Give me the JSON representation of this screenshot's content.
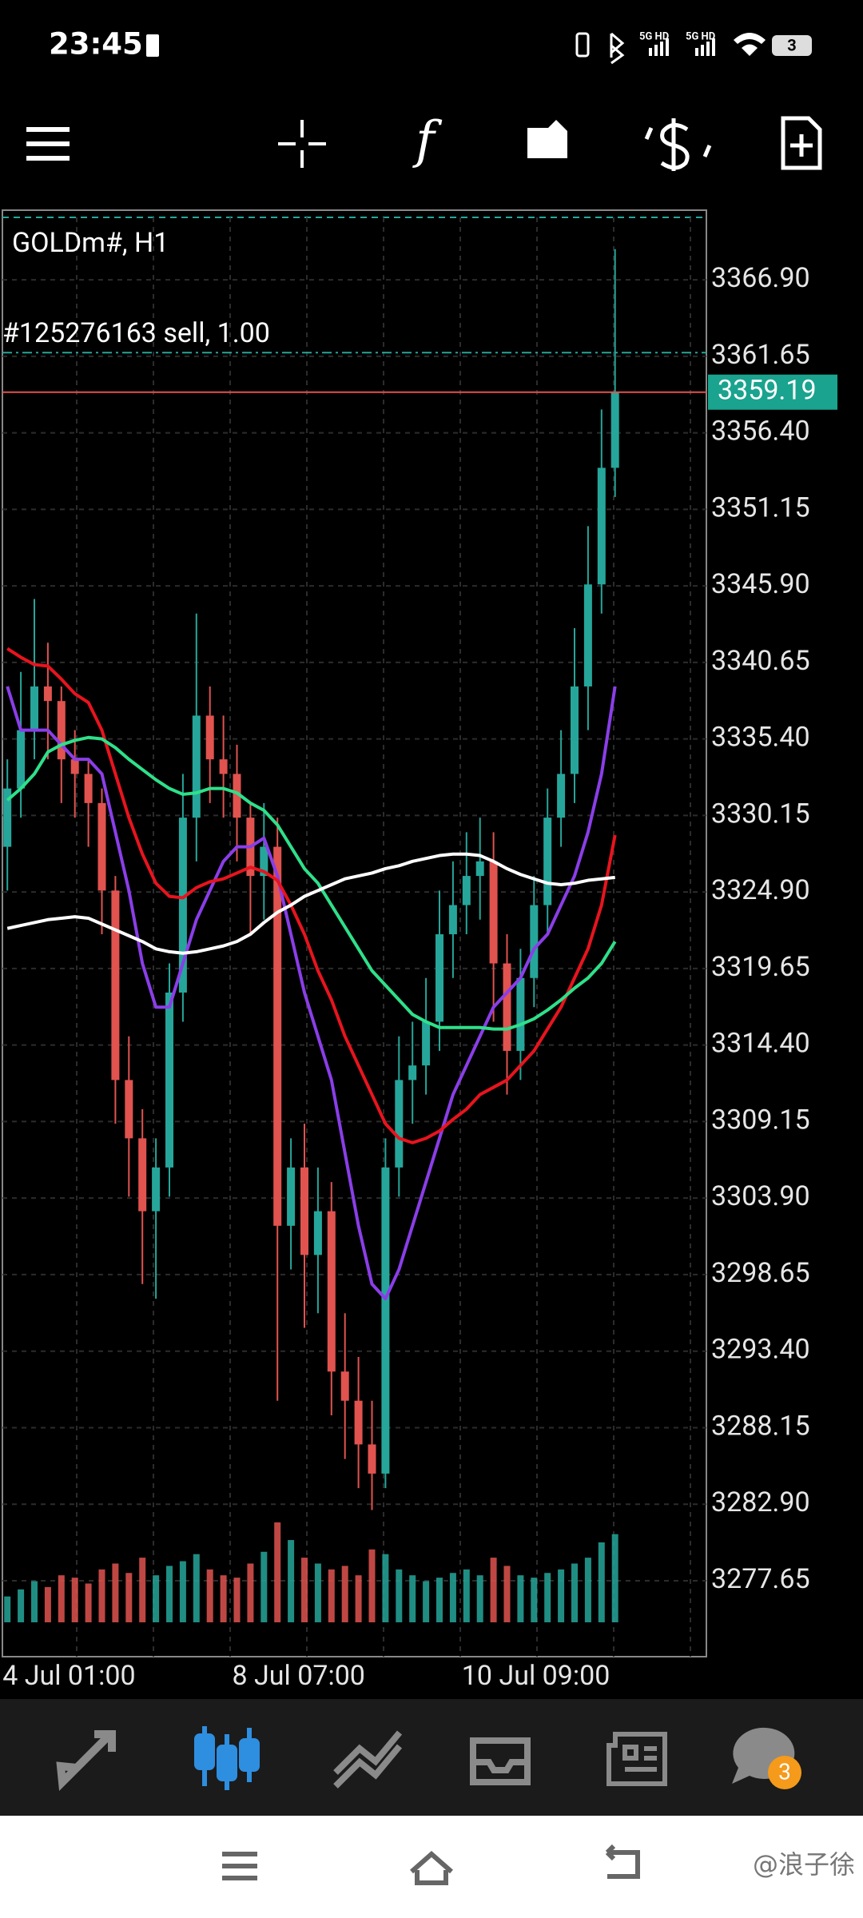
{
  "status_bar": {
    "time": "23:45",
    "network_labels": [
      "5G HD",
      "5G HD"
    ],
    "battery": "3"
  },
  "toolbar": {
    "function_icon": "f"
  },
  "chart_data": {
    "type": "candlestick",
    "title": "GOLDm#, H1",
    "categories": [
      "4 Jul 01:00",
      null,
      null,
      null,
      null,
      null,
      null,
      null,
      null,
      null,
      null,
      null,
      null,
      null,
      null,
      null,
      null,
      "8 Jul 07:00",
      null,
      null,
      null,
      null,
      null,
      null,
      null,
      null,
      null,
      null,
      null,
      null,
      null,
      null,
      null,
      null,
      "10 Jul 09:00",
      null,
      null,
      null,
      null,
      null,
      null,
      null,
      null,
      null,
      null,
      null
    ],
    "open": [
      3328,
      3332,
      3336,
      3339,
      3338,
      3334,
      3333,
      3331,
      3325,
      3312,
      3308,
      3303,
      3306,
      3318,
      3330,
      3337,
      3334,
      3333,
      3330,
      3326,
      3328,
      3302,
      3306,
      3300,
      3303,
      3292,
      3290,
      3287,
      3285,
      3306,
      3312,
      3313,
      3316,
      3322,
      3324,
      3326,
      3327,
      3320,
      3314,
      3319,
      3324,
      3330,
      3333,
      3339,
      3346,
      3354
    ],
    "high": [
      3334,
      3340,
      3345,
      3342,
      3339,
      3336,
      3334,
      3332,
      3326,
      3315,
      3310,
      3308,
      3320,
      3333,
      3344,
      3339,
      3337,
      3335,
      3331,
      3331,
      3330,
      3308,
      3309,
      3306,
      3305,
      3296,
      3293,
      3290,
      3308,
      3315,
      3316,
      3319,
      3325,
      3327,
      3329,
      3330,
      3329,
      3322,
      3321,
      3326,
      3332,
      3336,
      3343,
      3350,
      3358,
      3369
    ],
    "low": [
      3325,
      3330,
      3334,
      3334,
      3331,
      3330,
      3328,
      3322,
      3309,
      3304,
      3298,
      3297,
      3304,
      3316,
      3327,
      3331,
      3330,
      3327,
      3322,
      3323,
      3290,
      3299,
      3295,
      3296,
      3289,
      3286,
      3284,
      3282.5,
      3284,
      3304,
      3309,
      3311,
      3314,
      3319,
      3322,
      3323,
      3316,
      3311,
      3312,
      3317,
      3322,
      3328,
      3331,
      3336,
      3344,
      3352
    ],
    "close": [
      3332,
      3336,
      3339,
      3338,
      3334,
      3333,
      3331,
      3325,
      3312,
      3308,
      3303,
      3306,
      3318,
      3330,
      3337,
      3334,
      3333,
      3330,
      3326,
      3328,
      3302,
      3306,
      3300,
      3303,
      3292,
      3290,
      3287,
      3285,
      3306,
      3312,
      3313,
      3316,
      3322,
      3324,
      3326,
      3327,
      3320,
      3314,
      3319,
      3324,
      3330,
      3333,
      3339,
      3346,
      3354,
      3359.19
    ],
    "volume": [
      22,
      28,
      35,
      30,
      40,
      38,
      33,
      45,
      50,
      42,
      55,
      40,
      48,
      52,
      58,
      45,
      40,
      38,
      50,
      60,
      85,
      70,
      55,
      50,
      45,
      48,
      40,
      62,
      58,
      45,
      40,
      35,
      38,
      42,
      45,
      40,
      55,
      48,
      40,
      38,
      42,
      45,
      50,
      55,
      68,
      75
    ],
    "bull_color": "#26a69a",
    "bear_color": "#e0534f",
    "series": [
      {
        "color": "#8a3ee8",
        "values": [
          3339,
          3336,
          3336,
          3336,
          3335,
          3334,
          3334,
          3333,
          3329,
          3325,
          3320,
          3317,
          3317,
          3320,
          3323,
          3325,
          3327,
          3328,
          3328,
          3328.6,
          3326,
          3322,
          3318,
          3315,
          3312,
          3307,
          3302,
          3298,
          3297,
          3299,
          3302,
          3305,
          3308,
          3311,
          3313,
          3315,
          3317,
          3318,
          3319,
          3321,
          3322,
          3324,
          3326,
          3329,
          3333,
          3339
        ]
      },
      {
        "color": "#e8141e",
        "values": [
          3341.6,
          3341,
          3340.5,
          3340.4,
          3339.5,
          3338.5,
          3337.9,
          3336,
          3333,
          3330,
          3327.5,
          3325.5,
          3324.6,
          3324.5,
          3325.2,
          3325.6,
          3325.8,
          3326.2,
          3326.6,
          3326.3,
          3325.7,
          3324,
          3322,
          3319.5,
          3317.5,
          3315,
          3313,
          3311,
          3309,
          3308,
          3307.7,
          3308,
          3308.5,
          3309.3,
          3310,
          3311,
          3311.5,
          3312,
          3313,
          3314,
          3315.5,
          3317,
          3319,
          3321,
          3324,
          3328.8
        ]
      },
      {
        "color": "#2ee08a",
        "values": [
          3331.2,
          3332,
          3333,
          3334.5,
          3335,
          3335.3,
          3335.5,
          3335.4,
          3334.8,
          3334,
          3333.3,
          3332.6,
          3332,
          3331.6,
          3331.7,
          3332,
          3332,
          3331.7,
          3331,
          3330.5,
          3329.5,
          3328,
          3326.5,
          3325.5,
          3324,
          3322.5,
          3321,
          3319.5,
          3318.5,
          3317.5,
          3316.5,
          3316,
          3315.6,
          3315.6,
          3315.6,
          3315.6,
          3315.5,
          3315.5,
          3315.8,
          3316.2,
          3316.8,
          3317.5,
          3318.3,
          3319,
          3320,
          3321.5
        ]
      },
      {
        "color": "#ffffff",
        "values": [
          3322.4,
          3322.6,
          3322.8,
          3323,
          3323.1,
          3323.2,
          3323.1,
          3322.7,
          3322.3,
          3321.9,
          3321.5,
          3321,
          3320.8,
          3320.7,
          3320.8,
          3321,
          3321.2,
          3321.5,
          3322,
          3322.8,
          3323.5,
          3324,
          3324.6,
          3325,
          3325.4,
          3325.8,
          3326,
          3326.2,
          3326.5,
          3326.7,
          3327,
          3327.2,
          3327.4,
          3327.5,
          3327.5,
          3327.4,
          3327,
          3326.5,
          3326.1,
          3325.8,
          3325.5,
          3325.4,
          3325.5,
          3325.7,
          3325.8,
          3325.9
        ]
      }
    ],
    "ylim": [
      3272.44,
      3371.18
    ],
    "yticks": [
      {
        "value": 3366.9,
        "label": "3366.90"
      },
      3361.65,
      {
        "value": 3356.4,
        "label": "3356.40"
      },
      3351.15,
      {
        "value": 3345.9,
        "label": "3345.90"
      },
      3340.65,
      {
        "value": 3335.4,
        "label": "3335.40"
      },
      3330.15,
      {
        "value": 3324.9,
        "label": "3324.90"
      },
      3319.65,
      {
        "value": 3314.4,
        "label": "3314.40"
      },
      3309.15,
      {
        "value": 3303.9,
        "label": "3303.90"
      },
      3298.65,
      {
        "value": 3293.4,
        "label": "3293.40"
      },
      3288.15,
      {
        "value": 3282.9,
        "label": "3282.90"
      },
      3277.65
    ],
    "grid": true,
    "current_price": 3359.19,
    "order_label": "#125276163 sell, 1.00",
    "order_price": 3361.9
  },
  "bottom_nav": {
    "chat_badge": "3"
  },
  "watermark": "@浪子徐"
}
